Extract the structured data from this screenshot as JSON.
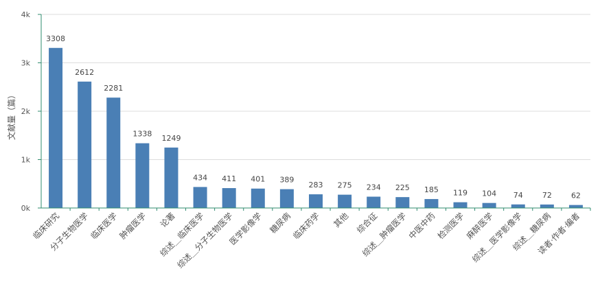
{
  "chart_data": {
    "type": "bar",
    "ylabel": "文献量（篇）",
    "ylim": [
      0,
      4000
    ],
    "yticks": [
      {
        "value": 0,
        "label": "0k"
      },
      {
        "value": 1000,
        "label": "1k"
      },
      {
        "value": 2000,
        "label": "2k"
      },
      {
        "value": 3000,
        "label": "3k"
      },
      {
        "value": 4000,
        "label": "4k"
      }
    ],
    "grid": true,
    "bar_color": "#4a7fb5",
    "axis_color": "#2e8b6e",
    "categories": [
      "临床研究",
      "分子生物医学",
      "临床医学",
      "肿瘤医学",
      "论著",
      "综述＿临床医学",
      "综述＿分子生物医学",
      "医学影像学",
      "糖尿病",
      "临床药学",
      "其他",
      "综合征",
      "综述＿肿瘤医学",
      "中医中药",
      "检测医学",
      "麻醉医学",
      "综述＿医学影像学",
      "综述＿糖尿病",
      "读者·作者·编者"
    ],
    "values": [
      3308,
      2612,
      2281,
      1338,
      1249,
      434,
      411,
      401,
      389,
      283,
      275,
      234,
      225,
      185,
      119,
      104,
      74,
      72,
      62
    ]
  }
}
